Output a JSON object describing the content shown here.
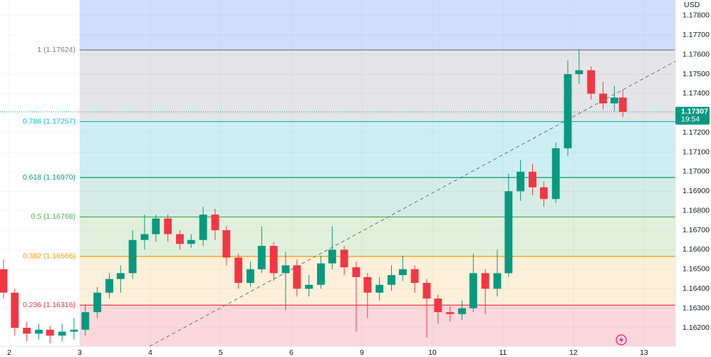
{
  "chart_data": {
    "type": "candlestick",
    "currency": "USD",
    "up_color": "#089981",
    "down_color": "#f23645",
    "xlim": [
      -0.13,
      9.445
    ],
    "xticks": [
      {
        "value": 0,
        "label": "2"
      },
      {
        "value": 1,
        "label": "3"
      },
      {
        "value": 2,
        "label": "4"
      },
      {
        "value": 3,
        "label": "5"
      },
      {
        "value": 4,
        "label": "6"
      },
      {
        "value": 5,
        "label": "9"
      },
      {
        "value": 6,
        "label": "10"
      },
      {
        "value": 7,
        "label": "11"
      },
      {
        "value": 8,
        "label": "12"
      },
      {
        "value": 9,
        "label": "13"
      }
    ],
    "ylim": [
      1.16105,
      1.1788
    ],
    "yticks": [
      {
        "value": 1.162,
        "label": "1.16200"
      },
      {
        "value": 1.163,
        "label": "1.16300"
      },
      {
        "value": 1.164,
        "label": "1.16400"
      },
      {
        "value": 1.165,
        "label": "1.16500"
      },
      {
        "value": 1.166,
        "label": "1.16600"
      },
      {
        "value": 1.167,
        "label": "1.16700"
      },
      {
        "value": 1.168,
        "label": "1.16800"
      },
      {
        "value": 1.169,
        "label": "1.16900"
      },
      {
        "value": 1.17,
        "label": "1.17000"
      },
      {
        "value": 1.171,
        "label": "1.17100"
      },
      {
        "value": 1.172,
        "label": "1.17200"
      },
      {
        "value": 1.173,
        "label": "1.17300"
      },
      {
        "value": 1.174,
        "label": "1.17400"
      },
      {
        "value": 1.175,
        "label": "1.17500"
      },
      {
        "value": 1.176,
        "label": "1.17600"
      },
      {
        "value": 1.177,
        "label": "1.17700"
      },
      {
        "value": 1.178,
        "label": "1.17800"
      }
    ],
    "grid": true,
    "x": [
      -0.08,
      0.08,
      0.25,
      0.42,
      0.58,
      0.75,
      0.92,
      1.08,
      1.25,
      1.42,
      1.58,
      1.75,
      1.92,
      2.08,
      2.25,
      2.42,
      2.58,
      2.75,
      2.92,
      3.08,
      3.25,
      3.42,
      3.58,
      3.75,
      3.92,
      4.08,
      4.25,
      4.42,
      4.58,
      4.75,
      4.92,
      5.08,
      5.25,
      5.42,
      5.58,
      5.75,
      5.92,
      6.08,
      6.25,
      6.42,
      6.58,
      6.75,
      6.92,
      7.08,
      7.25,
      7.42,
      7.58,
      7.75,
      7.92,
      8.08,
      8.25,
      8.42,
      8.58,
      8.7
    ],
    "open": [
      1.165,
      1.1638,
      1.162,
      1.1617,
      1.1619,
      1.1616,
      1.1618,
      1.1619,
      1.1628,
      1.1638,
      1.1645,
      1.1648,
      1.1665,
      1.1668,
      1.1676,
      1.1668,
      1.1663,
      1.1665,
      1.1678,
      1.167,
      1.1656,
      1.1643,
      1.165,
      1.1662,
      1.1648,
      1.1652,
      1.164,
      1.1642,
      1.1653,
      1.166,
      1.1651,
      1.1646,
      1.1638,
      1.1642,
      1.1647,
      1.165,
      1.1643,
      1.1635,
      1.1628,
      1.1627,
      1.163,
      1.1648,
      1.164,
      1.1648,
      1.169,
      1.17,
      1.1692,
      1.1686,
      1.1712,
      1.175,
      1.1752,
      1.174,
      1.1735,
      1.1738
    ],
    "high": [
      1.1655,
      1.164,
      1.1623,
      1.1622,
      1.1621,
      1.1622,
      1.1625,
      1.1632,
      1.1641,
      1.1648,
      1.1652,
      1.167,
      1.1678,
      1.1678,
      1.1678,
      1.167,
      1.1668,
      1.1682,
      1.1681,
      1.1672,
      1.1658,
      1.1654,
      1.1672,
      1.1664,
      1.1659,
      1.1655,
      1.1647,
      1.1657,
      1.1672,
      1.1662,
      1.1654,
      1.1648,
      1.1646,
      1.1652,
      1.1657,
      1.1652,
      1.1645,
      1.1637,
      1.1631,
      1.1634,
      1.1658,
      1.165,
      1.166,
      1.1699,
      1.1706,
      1.1704,
      1.1695,
      1.1715,
      1.1757,
      1.17625,
      1.1754,
      1.1746,
      1.1744,
      1.1742
    ],
    "low": [
      1.1635,
      1.1616,
      1.1613,
      1.1614,
      1.1612,
      1.1613,
      1.1614,
      1.1616,
      1.1625,
      1.1635,
      1.1638,
      1.1645,
      1.166,
      1.1664,
      1.1664,
      1.166,
      1.1661,
      1.1662,
      1.1665,
      1.1652,
      1.164,
      1.1641,
      1.1648,
      1.1644,
      1.1629,
      1.1636,
      1.1636,
      1.164,
      1.165,
      1.1647,
      1.1618,
      1.1625,
      1.1634,
      1.1639,
      1.1644,
      1.1638,
      1.1615,
      1.1622,
      1.1623,
      1.1624,
      1.1628,
      1.1627,
      1.1636,
      1.1646,
      1.1685,
      1.1688,
      1.1682,
      1.1684,
      1.1708,
      1.1745,
      1.1737,
      1.1732,
      1.1731,
      1.1728
    ],
    "close": [
      1.1638,
      1.162,
      1.1617,
      1.1619,
      1.1616,
      1.1618,
      1.1619,
      1.1628,
      1.1638,
      1.1645,
      1.1648,
      1.1665,
      1.1668,
      1.1676,
      1.1668,
      1.1663,
      1.1665,
      1.1678,
      1.167,
      1.1656,
      1.1643,
      1.165,
      1.1662,
      1.1648,
      1.1652,
      1.164,
      1.1642,
      1.1653,
      1.166,
      1.1651,
      1.1646,
      1.1638,
      1.1642,
      1.1647,
      1.165,
      1.1643,
      1.1635,
      1.1628,
      1.1627,
      1.163,
      1.1648,
      1.164,
      1.1648,
      1.169,
      1.17,
      1.1692,
      1.1686,
      1.1712,
      1.175,
      1.1752,
      1.174,
      1.1735,
      1.1738,
      1.17307
    ],
    "last_price": 1.17307,
    "countdown": "19:54",
    "fib": {
      "fill_above": "#d2ddfd",
      "levels": [
        {
          "label": "1 (1.17624)",
          "value": 1.17624,
          "color": "#787b86",
          "fill": "#e5e5e7"
        },
        {
          "label": "0.786 (1.17257)",
          "value": 1.17257,
          "color": "#00bcd4",
          "fill": "#cdeff3"
        },
        {
          "label": "0.618 (1.16970)",
          "value": 1.1697,
          "color": "#089981",
          "fill": "#d5ede6"
        },
        {
          "label": "0.5 (1.16768)",
          "value": 1.16768,
          "color": "#4caf50",
          "fill": "#e0f0dc"
        },
        {
          "label": "0.382 (1.16566)",
          "value": 1.16566,
          "color": "#ff9800",
          "fill": "#fdf0da"
        },
        {
          "label": "0.236 (1.16316)",
          "value": 1.16316,
          "color": "#f23645",
          "fill": "#fad8dc"
        }
      ]
    }
  }
}
